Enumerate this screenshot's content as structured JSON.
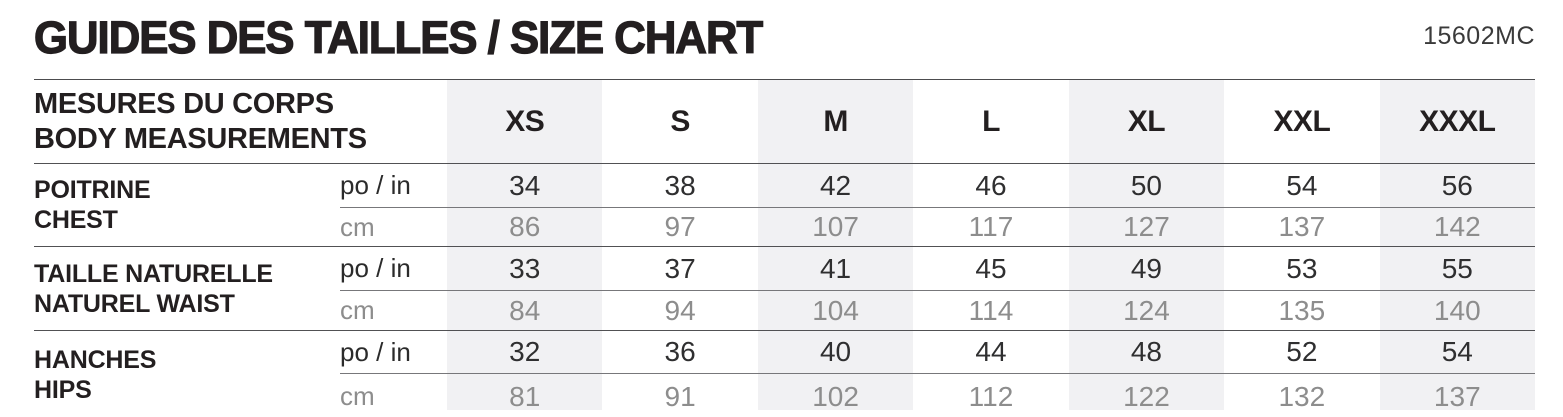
{
  "header": {
    "title": "GUIDES DES TAILLES / SIZE CHART",
    "product_code": "15602MC"
  },
  "table": {
    "corner": {
      "line1": "MESURES DU CORPS",
      "line2": "BODY MEASUREMENTS"
    },
    "sizes": [
      "XS",
      "S",
      "M",
      "L",
      "XL",
      "XXL",
      "XXXL"
    ],
    "units": {
      "inches": "po / in",
      "cm": "cm"
    },
    "measurements": [
      {
        "label_fr": "POITRINE",
        "label_en": "CHEST",
        "in": [
          "34",
          "38",
          "42",
          "46",
          "50",
          "54",
          "56"
        ],
        "cm": [
          "86",
          "97",
          "107",
          "117",
          "127",
          "137",
          "142"
        ]
      },
      {
        "label_fr": "TAILLE NATURELLE",
        "label_en": "NATUREL WAIST",
        "in": [
          "33",
          "37",
          "41",
          "45",
          "49",
          "53",
          "55"
        ],
        "cm": [
          "84",
          "94",
          "104",
          "114",
          "124",
          "135",
          "140"
        ]
      },
      {
        "label_fr": "HANCHES",
        "label_en": "HIPS",
        "in": [
          "32",
          "36",
          "40",
          "44",
          "48",
          "52",
          "54"
        ],
        "cm": [
          "81",
          "91",
          "102",
          "112",
          "122",
          "132",
          "137"
        ]
      }
    ]
  },
  "colors": {
    "background": "#ffffff",
    "column_shade": "#f1f1f3",
    "text_dark": "#231f20",
    "value_dark": "#2f2f30",
    "muted_gray": "#8d8d8d",
    "line_dark": "#515153",
    "line_light": "#77777a"
  }
}
